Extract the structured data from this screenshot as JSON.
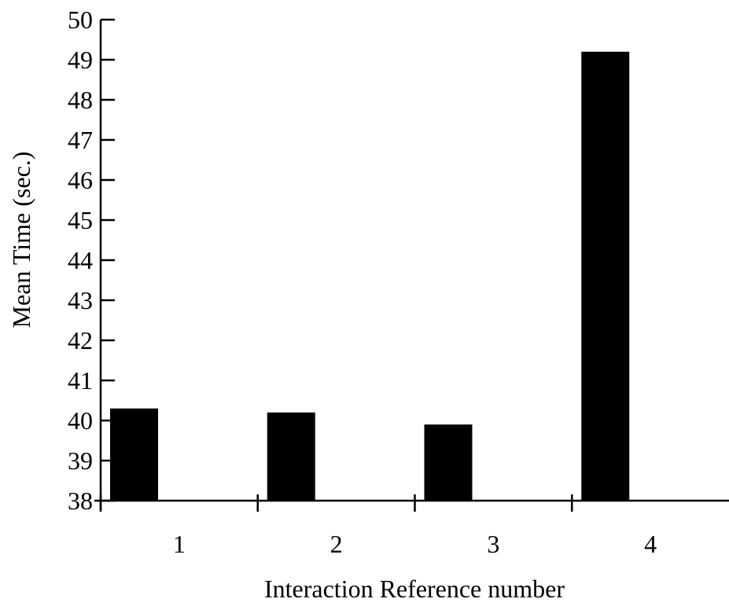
{
  "chart_data": {
    "type": "bar",
    "categories": [
      "1",
      "2",
      "3",
      "4"
    ],
    "values": [
      40.3,
      40.2,
      39.9,
      49.2
    ],
    "title": "",
    "xlabel": "Interaction Reference number",
    "ylabel": "Mean Time (sec.)",
    "ylim": [
      38,
      50
    ],
    "yticks": [
      38,
      39,
      40,
      41,
      42,
      43,
      44,
      45,
      46,
      47,
      48,
      49,
      50
    ],
    "grid": false,
    "legend": "none",
    "bar_color": "#000000"
  }
}
